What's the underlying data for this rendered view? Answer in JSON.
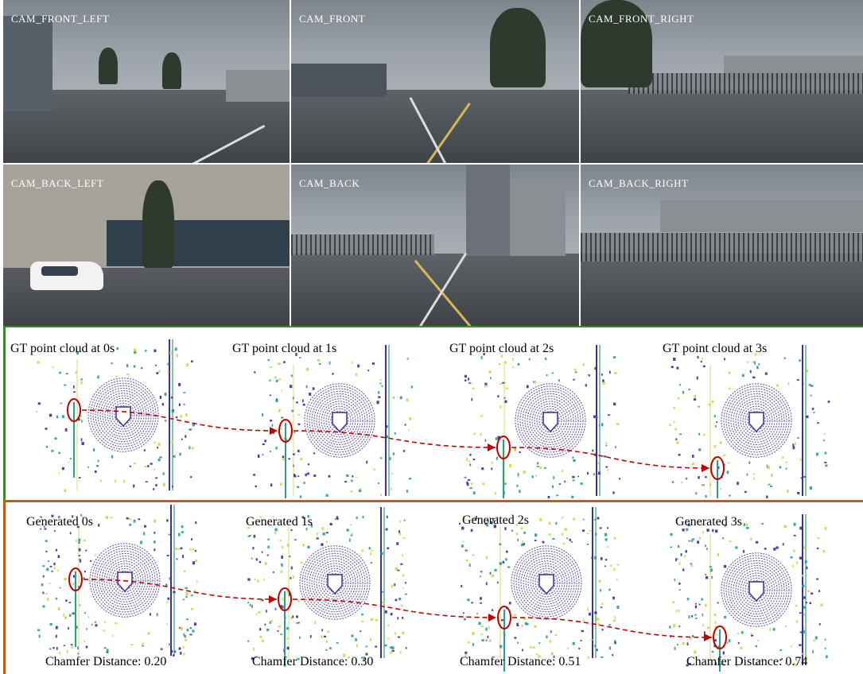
{
  "cameras": [
    {
      "id": "front-left",
      "label": "CAM_FRONT_LEFT"
    },
    {
      "id": "front",
      "label": "CAM_FRONT"
    },
    {
      "id": "front-right",
      "label": "CAM_FRONT_RIGHT"
    },
    {
      "id": "back-left",
      "label": "CAM_BACK_LEFT"
    },
    {
      "id": "back",
      "label": "CAM_BACK"
    },
    {
      "id": "back-right",
      "label": "CAM_BACK_RIGHT"
    }
  ],
  "gt": {
    "titles": [
      "GT point cloud at 0s",
      "GT point cloud at 1s",
      "GT point cloud at 2s",
      "GT point cloud at 3s"
    ],
    "border_color": "#3a8a2e"
  },
  "generated": {
    "titles": [
      "Generated 0s",
      "Generated 1s",
      "Generated 2s",
      "Generated 3s"
    ],
    "chamfer": [
      "Chamfer Distance: 0.20",
      "Chamfer Distance: 0.30",
      "Chamfer Distance: 0.51",
      "Chamfer Distance: 0.74"
    ],
    "border_color": "#c85a1a"
  },
  "colors": {
    "trajectory": "#c00000",
    "points_dark": "#3b2f8f",
    "points_mid": "#2a9d8f",
    "points_light": "#c7d84a"
  }
}
